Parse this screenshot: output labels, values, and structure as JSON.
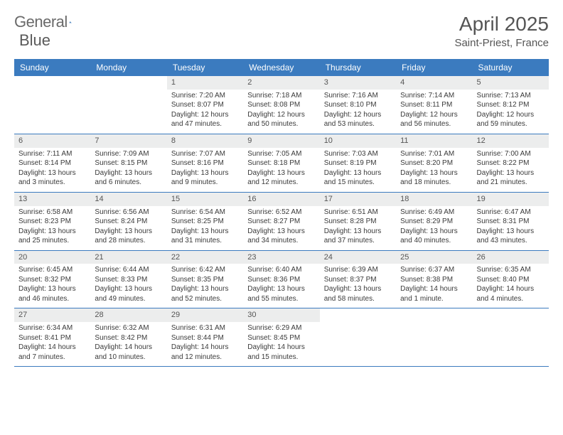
{
  "brand": {
    "part1": "General",
    "part2": "Blue"
  },
  "title": "April 2025",
  "location": "Saint-Priest, France",
  "colors": {
    "header_bg": "#3b7bbf",
    "header_text": "#ffffff",
    "daynum_bg": "#eceded",
    "row_border": "#3b7bbf",
    "logo_accent": "#2f6fb3"
  },
  "day_names": [
    "Sunday",
    "Monday",
    "Tuesday",
    "Wednesday",
    "Thursday",
    "Friday",
    "Saturday"
  ],
  "weeks": [
    [
      null,
      null,
      {
        "n": "1",
        "sr": "7:20 AM",
        "ss": "8:07 PM",
        "dl": "12 hours and 47 minutes."
      },
      {
        "n": "2",
        "sr": "7:18 AM",
        "ss": "8:08 PM",
        "dl": "12 hours and 50 minutes."
      },
      {
        "n": "3",
        "sr": "7:16 AM",
        "ss": "8:10 PM",
        "dl": "12 hours and 53 minutes."
      },
      {
        "n": "4",
        "sr": "7:14 AM",
        "ss": "8:11 PM",
        "dl": "12 hours and 56 minutes."
      },
      {
        "n": "5",
        "sr": "7:13 AM",
        "ss": "8:12 PM",
        "dl": "12 hours and 59 minutes."
      }
    ],
    [
      {
        "n": "6",
        "sr": "7:11 AM",
        "ss": "8:14 PM",
        "dl": "13 hours and 3 minutes."
      },
      {
        "n": "7",
        "sr": "7:09 AM",
        "ss": "8:15 PM",
        "dl": "13 hours and 6 minutes."
      },
      {
        "n": "8",
        "sr": "7:07 AM",
        "ss": "8:16 PM",
        "dl": "13 hours and 9 minutes."
      },
      {
        "n": "9",
        "sr": "7:05 AM",
        "ss": "8:18 PM",
        "dl": "13 hours and 12 minutes."
      },
      {
        "n": "10",
        "sr": "7:03 AM",
        "ss": "8:19 PM",
        "dl": "13 hours and 15 minutes."
      },
      {
        "n": "11",
        "sr": "7:01 AM",
        "ss": "8:20 PM",
        "dl": "13 hours and 18 minutes."
      },
      {
        "n": "12",
        "sr": "7:00 AM",
        "ss": "8:22 PM",
        "dl": "13 hours and 21 minutes."
      }
    ],
    [
      {
        "n": "13",
        "sr": "6:58 AM",
        "ss": "8:23 PM",
        "dl": "13 hours and 25 minutes."
      },
      {
        "n": "14",
        "sr": "6:56 AM",
        "ss": "8:24 PM",
        "dl": "13 hours and 28 minutes."
      },
      {
        "n": "15",
        "sr": "6:54 AM",
        "ss": "8:25 PM",
        "dl": "13 hours and 31 minutes."
      },
      {
        "n": "16",
        "sr": "6:52 AM",
        "ss": "8:27 PM",
        "dl": "13 hours and 34 minutes."
      },
      {
        "n": "17",
        "sr": "6:51 AM",
        "ss": "8:28 PM",
        "dl": "13 hours and 37 minutes."
      },
      {
        "n": "18",
        "sr": "6:49 AM",
        "ss": "8:29 PM",
        "dl": "13 hours and 40 minutes."
      },
      {
        "n": "19",
        "sr": "6:47 AM",
        "ss": "8:31 PM",
        "dl": "13 hours and 43 minutes."
      }
    ],
    [
      {
        "n": "20",
        "sr": "6:45 AM",
        "ss": "8:32 PM",
        "dl": "13 hours and 46 minutes."
      },
      {
        "n": "21",
        "sr": "6:44 AM",
        "ss": "8:33 PM",
        "dl": "13 hours and 49 minutes."
      },
      {
        "n": "22",
        "sr": "6:42 AM",
        "ss": "8:35 PM",
        "dl": "13 hours and 52 minutes."
      },
      {
        "n": "23",
        "sr": "6:40 AM",
        "ss": "8:36 PM",
        "dl": "13 hours and 55 minutes."
      },
      {
        "n": "24",
        "sr": "6:39 AM",
        "ss": "8:37 PM",
        "dl": "13 hours and 58 minutes."
      },
      {
        "n": "25",
        "sr": "6:37 AM",
        "ss": "8:38 PM",
        "dl": "14 hours and 1 minute."
      },
      {
        "n": "26",
        "sr": "6:35 AM",
        "ss": "8:40 PM",
        "dl": "14 hours and 4 minutes."
      }
    ],
    [
      {
        "n": "27",
        "sr": "6:34 AM",
        "ss": "8:41 PM",
        "dl": "14 hours and 7 minutes."
      },
      {
        "n": "28",
        "sr": "6:32 AM",
        "ss": "8:42 PM",
        "dl": "14 hours and 10 minutes."
      },
      {
        "n": "29",
        "sr": "6:31 AM",
        "ss": "8:44 PM",
        "dl": "14 hours and 12 minutes."
      },
      {
        "n": "30",
        "sr": "6:29 AM",
        "ss": "8:45 PM",
        "dl": "14 hours and 15 minutes."
      },
      null,
      null,
      null
    ]
  ],
  "labels": {
    "sunrise": "Sunrise: ",
    "sunset": "Sunset: ",
    "daylight": "Daylight: "
  }
}
